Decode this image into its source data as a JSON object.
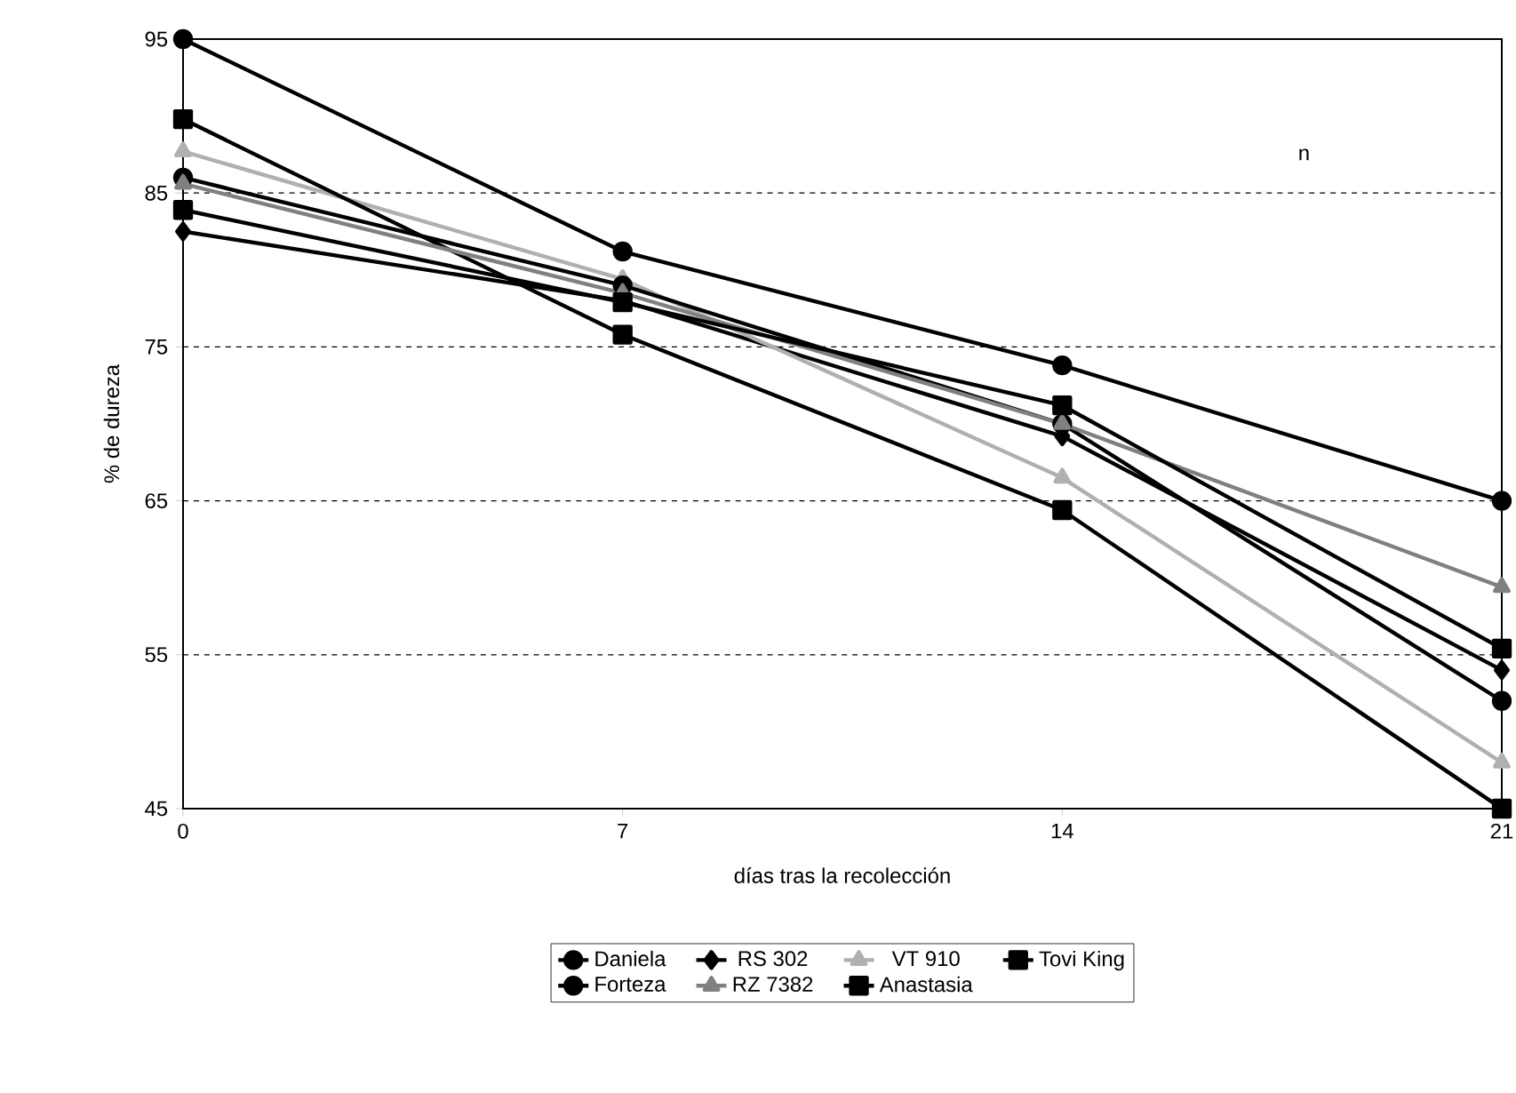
{
  "chart_data": {
    "type": "line",
    "xlabel": "días tras la recolección",
    "ylabel": "% de dureza",
    "x": [
      0,
      7,
      14,
      21
    ],
    "xlim": [
      0,
      21
    ],
    "xticks": [
      0,
      7,
      14,
      21
    ],
    "ylim": [
      45,
      95
    ],
    "yticks": [
      45,
      55,
      65,
      75,
      85,
      95
    ],
    "grid": "y",
    "legend": "bottom",
    "line_style": "solid",
    "annotations": [
      "n"
    ],
    "series": [
      {
        "name": "Daniela",
        "color": "#000000",
        "marker": "circle",
        "values": [
          95,
          81.2,
          73.8,
          65
        ]
      },
      {
        "name": "RS 302",
        "color": "#000000",
        "marker": "diamond",
        "values": [
          82.5,
          78,
          69.2,
          54
        ]
      },
      {
        "name": "VT 910",
        "color": "#b0b0b0",
        "marker": "triangle",
        "values": [
          87.7,
          79.4,
          66.5,
          48
        ]
      },
      {
        "name": "Tovi King",
        "color": "#000000",
        "marker": "square",
        "values": [
          89.8,
          75.8,
          64.4,
          45
        ]
      },
      {
        "name": "Forteza",
        "color": "#000000",
        "marker": "circle",
        "values": [
          86,
          79,
          70,
          52
        ]
      },
      {
        "name": "RZ 7382",
        "color": "#808080",
        "marker": "triangle",
        "values": [
          85.6,
          78.5,
          70,
          59.4
        ]
      },
      {
        "name": "Anastasia",
        "color": "#000000",
        "marker": "square",
        "values": [
          83.9,
          77.9,
          71.2,
          55.4
        ]
      }
    ]
  }
}
